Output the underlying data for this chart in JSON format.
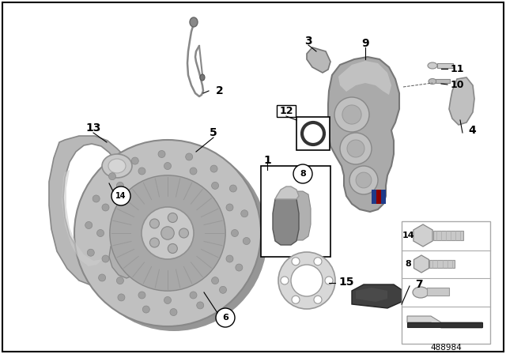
{
  "background_color": "#ffffff",
  "part_number": "488984",
  "disc_color": "#b8b8b8",
  "disc_shadow_color": "#999999",
  "shield_color": "#b0b0b0",
  "caliper_color": "#a0a0a0",
  "dark_gray": "#707070",
  "light_gray": "#d0d0d0",
  "black": "#000000",
  "white": "#ffffff",
  "rubber_color": "#3a3a3a"
}
